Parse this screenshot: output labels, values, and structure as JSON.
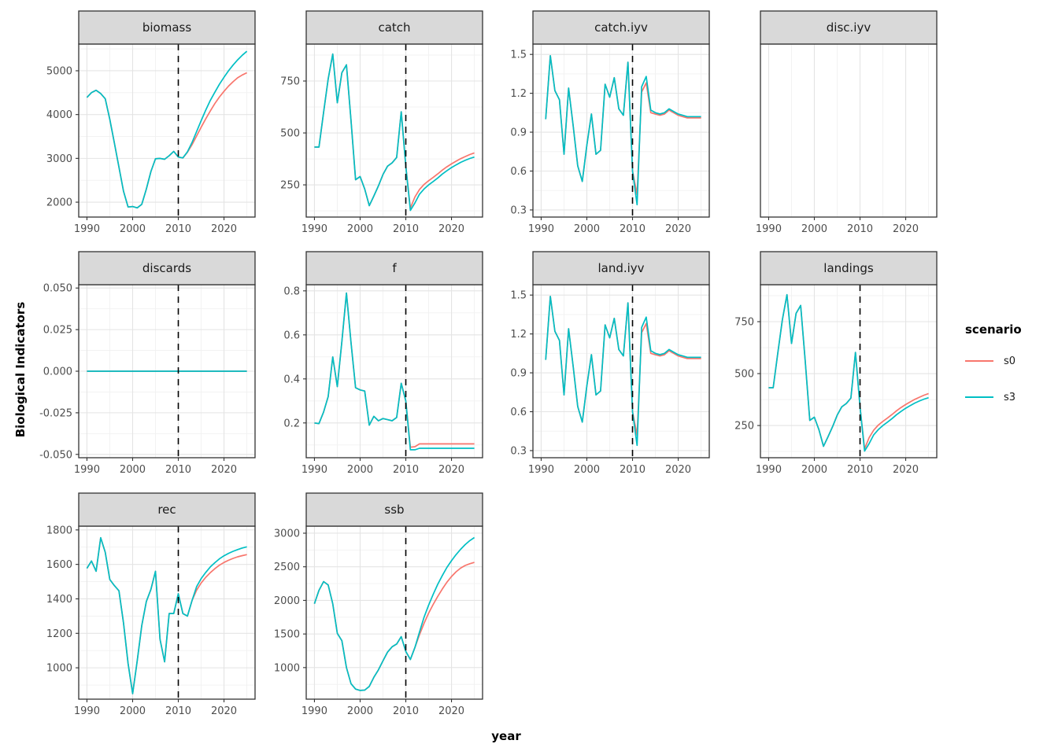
{
  "chart_data": {
    "type": "line",
    "title": "",
    "xlabel": "year",
    "ylabel": "Biological Indicators",
    "grid": true,
    "legend_position": "right",
    "years": [
      1990,
      1991,
      1992,
      1993,
      1994,
      1995,
      1996,
      1997,
      1998,
      1999,
      2000,
      2001,
      2002,
      2003,
      2004,
      2005,
      2006,
      2007,
      2008,
      2009,
      2010,
      2011,
      2012,
      2013,
      2014,
      2015,
      2016,
      2017,
      2018,
      2019,
      2020,
      2021,
      2022,
      2023,
      2024,
      2025
    ],
    "xlim": [
      1988.2,
      2026.8
    ],
    "x_ticks": [
      1990,
      2000,
      2010,
      2020
    ],
    "x_tick_labels": [
      "1990",
      "2000",
      "2010",
      "2020"
    ],
    "vline_year": 2010,
    "series_order": [
      "s0",
      "s3"
    ],
    "series_colors": {
      "s0": "#F8766D",
      "s3": "#00BFC4"
    },
    "legend": {
      "title": "scenario",
      "items": [
        {
          "label": "s0",
          "color": "#F8766D"
        },
        {
          "label": "s3",
          "color": "#00BFC4"
        }
      ]
    },
    "facets": [
      {
        "title": "biomass",
        "row": 0,
        "col": 0,
        "ylim": [
          1660,
          5610
        ],
        "y_ticks": [
          2000,
          3000,
          4000,
          5000
        ],
        "y_labels": [
          "2000",
          "3000",
          "4000",
          "5000"
        ],
        "vline": true,
        "series": {
          "s0": [
            4390,
            4500,
            4555,
            4480,
            4360,
            3890,
            3350,
            2800,
            2250,
            1890,
            1900,
            1870,
            1950,
            2300,
            2700,
            2990,
            3000,
            2980,
            3060,
            3160,
            3030,
            3010,
            3140,
            3310,
            3510,
            3710,
            3900,
            4080,
            4250,
            4400,
            4530,
            4650,
            4750,
            4840,
            4905,
            4955
          ],
          "s3": [
            4390,
            4500,
            4555,
            4480,
            4360,
            3890,
            3350,
            2800,
            2250,
            1890,
            1900,
            1870,
            1950,
            2300,
            2700,
            2990,
            3000,
            2980,
            3060,
            3160,
            3030,
            3010,
            3150,
            3360,
            3610,
            3860,
            4100,
            4320,
            4510,
            4690,
            4850,
            5000,
            5130,
            5250,
            5355,
            5445
          ]
        }
      },
      {
        "title": "catch",
        "row": 0,
        "col": 1,
        "ylim": [
          95,
          928
        ],
        "y_ticks": [
          250,
          500,
          750
        ],
        "y_labels": [
          "250",
          "500",
          "750"
        ],
        "vline": true,
        "series": {
          "s0": [
            432,
            432,
            600,
            760,
            880,
            645,
            790,
            828,
            560,
            275,
            290,
            230,
            150,
            196,
            245,
            300,
            340,
            356,
            382,
            602,
            340,
            138,
            192,
            228,
            252,
            270,
            286,
            303,
            321,
            337,
            351,
            364,
            376,
            386,
            396,
            404
          ],
          "s3": [
            432,
            432,
            600,
            760,
            880,
            645,
            790,
            828,
            560,
            275,
            290,
            230,
            150,
            196,
            245,
            300,
            340,
            356,
            382,
            602,
            340,
            127,
            163,
            205,
            230,
            250,
            266,
            283,
            302,
            318,
            333,
            346,
            358,
            368,
            377,
            384
          ]
        }
      },
      {
        "title": "catch.iyv",
        "row": 0,
        "col": 2,
        "ylim": [
          0.245,
          1.58
        ],
        "y_ticks": [
          0.3,
          0.6,
          0.9,
          1.2,
          1.5
        ],
        "y_labels": [
          "0.3",
          "0.6",
          "0.9",
          "1.2",
          "1.5"
        ],
        "vline": true,
        "series": {
          "s0": [
            null,
            1.0,
            1.49,
            1.22,
            1.15,
            0.73,
            1.24,
            0.95,
            0.64,
            0.52,
            0.8,
            1.04,
            0.73,
            0.76,
            1.27,
            1.17,
            1.32,
            1.08,
            1.03,
            1.44,
            0.6,
            0.42,
            1.21,
            1.28,
            1.05,
            1.04,
            1.03,
            1.04,
            1.07,
            1.05,
            1.03,
            1.02,
            1.01,
            1.01,
            1.01,
            1.01
          ],
          "s3": [
            null,
            1.0,
            1.49,
            1.22,
            1.15,
            0.73,
            1.24,
            0.95,
            0.64,
            0.52,
            0.8,
            1.04,
            0.73,
            0.76,
            1.27,
            1.17,
            1.32,
            1.08,
            1.03,
            1.44,
            0.6,
            0.34,
            1.25,
            1.33,
            1.07,
            1.05,
            1.04,
            1.05,
            1.08,
            1.06,
            1.04,
            1.03,
            1.02,
            1.02,
            1.02,
            1.02
          ]
        }
      },
      {
        "title": "disc.iyv",
        "row": 0,
        "col": 3,
        "ylim": [
          0,
          1
        ],
        "y_ticks": [],
        "y_labels": [],
        "vline": false,
        "series": null
      },
      {
        "title": "discards",
        "row": 1,
        "col": 0,
        "ylim": [
          -0.052,
          0.052
        ],
        "y_ticks": [
          -0.05,
          -0.025,
          0.0,
          0.025,
          0.05
        ],
        "y_labels": [
          "-0.050",
          "-0.025",
          "0.000",
          "0.025",
          "0.050"
        ],
        "vline": true,
        "series": {
          "s0": [
            0,
            0,
            0,
            0,
            0,
            0,
            0,
            0,
            0,
            0,
            0,
            0,
            0,
            0,
            0,
            0,
            0,
            0,
            0,
            0,
            0,
            0,
            0,
            0,
            0,
            0,
            0,
            0,
            0,
            0,
            0,
            0,
            0,
            0,
            0,
            0
          ],
          "s3": [
            0,
            0,
            0,
            0,
            0,
            0,
            0,
            0,
            0,
            0,
            0,
            0,
            0,
            0,
            0,
            0,
            0,
            0,
            0,
            0,
            0,
            0,
            0,
            0,
            0,
            0,
            0,
            0,
            0,
            0,
            0,
            0,
            0,
            0,
            0,
            0
          ]
        }
      },
      {
        "title": "f",
        "row": 1,
        "col": 1,
        "ylim": [
          0.042,
          0.828
        ],
        "y_ticks": [
          0.2,
          0.4,
          0.6,
          0.8
        ],
        "y_labels": [
          "0.2",
          "0.4",
          "0.6",
          "0.8"
        ],
        "vline": true,
        "series": {
          "s0": [
            0.2,
            0.197,
            0.25,
            0.32,
            0.5,
            0.365,
            0.57,
            0.79,
            0.565,
            0.36,
            0.35,
            0.345,
            0.19,
            0.23,
            0.21,
            0.22,
            0.215,
            0.21,
            0.225,
            0.38,
            0.3,
            0.09,
            0.092,
            0.105,
            0.105,
            0.105,
            0.105,
            0.105,
            0.105,
            0.105,
            0.105,
            0.105,
            0.105,
            0.105,
            0.105,
            0.105
          ],
          "s3": [
            0.2,
            0.197,
            0.25,
            0.32,
            0.5,
            0.365,
            0.57,
            0.79,
            0.565,
            0.36,
            0.35,
            0.345,
            0.19,
            0.23,
            0.21,
            0.22,
            0.215,
            0.21,
            0.225,
            0.38,
            0.3,
            0.078,
            0.078,
            0.085,
            0.085,
            0.085,
            0.085,
            0.085,
            0.085,
            0.085,
            0.085,
            0.085,
            0.085,
            0.085,
            0.085,
            0.085
          ]
        }
      },
      {
        "title": "land.iyv",
        "row": 1,
        "col": 2,
        "ylim": [
          0.245,
          1.58
        ],
        "y_ticks": [
          0.3,
          0.6,
          0.9,
          1.2,
          1.5
        ],
        "y_labels": [
          "0.3",
          "0.6",
          "0.9",
          "1.2",
          "1.5"
        ],
        "vline": true,
        "series": {
          "s0": [
            null,
            1.0,
            1.49,
            1.22,
            1.15,
            0.73,
            1.24,
            0.95,
            0.64,
            0.52,
            0.8,
            1.04,
            0.73,
            0.76,
            1.27,
            1.17,
            1.32,
            1.08,
            1.03,
            1.44,
            0.6,
            0.42,
            1.21,
            1.28,
            1.05,
            1.04,
            1.03,
            1.04,
            1.07,
            1.05,
            1.03,
            1.02,
            1.01,
            1.01,
            1.01,
            1.01
          ],
          "s3": [
            null,
            1.0,
            1.49,
            1.22,
            1.15,
            0.73,
            1.24,
            0.95,
            0.64,
            0.52,
            0.8,
            1.04,
            0.73,
            0.76,
            1.27,
            1.17,
            1.32,
            1.08,
            1.03,
            1.44,
            0.6,
            0.34,
            1.25,
            1.33,
            1.07,
            1.05,
            1.04,
            1.05,
            1.08,
            1.06,
            1.04,
            1.03,
            1.02,
            1.02,
            1.02,
            1.02
          ]
        }
      },
      {
        "title": "landings",
        "row": 1,
        "col": 3,
        "ylim": [
          95,
          928
        ],
        "y_ticks": [
          250,
          500,
          750
        ],
        "y_labels": [
          "250",
          "500",
          "750"
        ],
        "vline": true,
        "series": {
          "s0": [
            432,
            432,
            600,
            760,
            880,
            645,
            790,
            828,
            560,
            275,
            290,
            230,
            150,
            196,
            245,
            300,
            340,
            356,
            382,
            602,
            340,
            138,
            192,
            228,
            252,
            270,
            286,
            303,
            321,
            337,
            351,
            364,
            376,
            386,
            396,
            404
          ],
          "s3": [
            432,
            432,
            600,
            760,
            880,
            645,
            790,
            828,
            560,
            275,
            290,
            230,
            150,
            196,
            245,
            300,
            340,
            356,
            382,
            602,
            340,
            127,
            163,
            205,
            230,
            250,
            266,
            283,
            302,
            318,
            333,
            346,
            358,
            368,
            377,
            384
          ]
        }
      },
      {
        "title": "rec",
        "row": 2,
        "col": 0,
        "ylim": [
          818,
          1822
        ],
        "y_ticks": [
          1000,
          1200,
          1400,
          1600,
          1800
        ],
        "y_labels": [
          "1000",
          "1200",
          "1400",
          "1600",
          "1800"
        ],
        "vline": true,
        "series": {
          "s0": [
            1577,
            1620,
            1560,
            1755,
            1670,
            1512,
            1477,
            1447,
            1260,
            1025,
            850,
            1040,
            1245,
            1385,
            1455,
            1560,
            1165,
            1035,
            1315,
            1315,
            1430,
            1315,
            1300,
            1390,
            1450,
            1492,
            1525,
            1552,
            1575,
            1595,
            1611,
            1624,
            1635,
            1644,
            1651,
            1657
          ],
          "s3": [
            1577,
            1620,
            1560,
            1755,
            1670,
            1512,
            1477,
            1447,
            1260,
            1025,
            850,
            1040,
            1245,
            1385,
            1455,
            1560,
            1165,
            1035,
            1315,
            1315,
            1430,
            1315,
            1300,
            1390,
            1470,
            1517,
            1553,
            1585,
            1610,
            1632,
            1650,
            1664,
            1676,
            1686,
            1695,
            1702
          ]
        }
      },
      {
        "title": "ssb",
        "row": 2,
        "col": 1,
        "ylim": [
          530,
          3105
        ],
        "y_ticks": [
          1000,
          1500,
          2000,
          2500,
          3000
        ],
        "y_labels": [
          "1000",
          "1500",
          "2000",
          "2500",
          "3000"
        ],
        "vline": true,
        "series": {
          "s0": [
            1950,
            2150,
            2280,
            2230,
            1950,
            1510,
            1400,
            1000,
            760,
            680,
            660,
            665,
            720,
            855,
            965,
            1100,
            1230,
            1310,
            1350,
            1460,
            1240,
            1120,
            1300,
            1490,
            1660,
            1810,
            1940,
            2060,
            2170,
            2270,
            2355,
            2425,
            2480,
            2520,
            2545,
            2565
          ],
          "s3": [
            1950,
            2150,
            2280,
            2230,
            1950,
            1510,
            1400,
            1000,
            760,
            680,
            660,
            665,
            720,
            855,
            965,
            1100,
            1230,
            1310,
            1350,
            1460,
            1240,
            1120,
            1300,
            1530,
            1750,
            1930,
            2090,
            2240,
            2370,
            2490,
            2590,
            2680,
            2760,
            2830,
            2890,
            2935
          ]
        }
      }
    ]
  }
}
